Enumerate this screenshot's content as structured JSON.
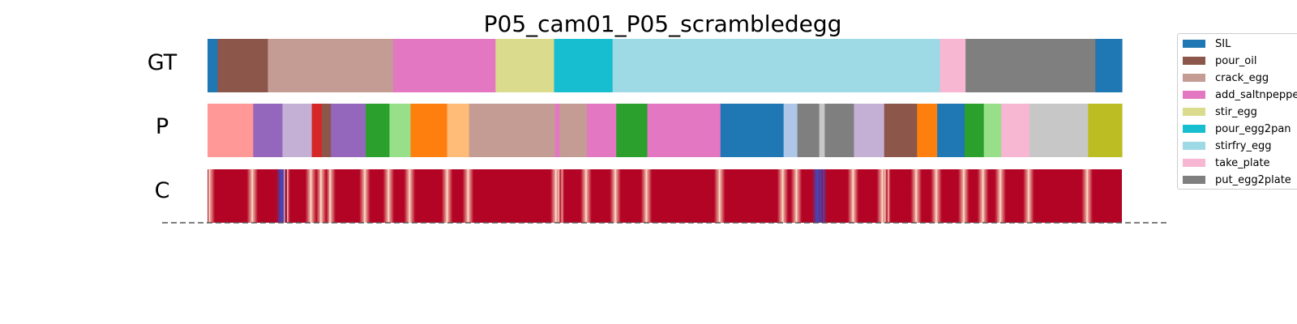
{
  "chart_data": {
    "type": "segmentation",
    "title": "P05_cam01_P05_scrambledegg",
    "rows": [
      {
        "label": "GT",
        "kind": "segments",
        "segments": [
          {
            "start": 0.0,
            "end": 0.011,
            "color": "#1f77b4"
          },
          {
            "start": 0.011,
            "end": 0.066,
            "color": "#8c564b"
          },
          {
            "start": 0.066,
            "end": 0.203,
            "color": "#c49c94"
          },
          {
            "start": 0.203,
            "end": 0.315,
            "color": "#e377c2"
          },
          {
            "start": 0.315,
            "end": 0.379,
            "color": "#dbdb8d"
          },
          {
            "start": 0.379,
            "end": 0.443,
            "color": "#17becf"
          },
          {
            "start": 0.443,
            "end": 0.801,
            "color": "#9edae5"
          },
          {
            "start": 0.801,
            "end": 0.829,
            "color": "#f7b6d2"
          },
          {
            "start": 0.829,
            "end": 0.971,
            "color": "#7f7f7f"
          },
          {
            "start": 0.971,
            "end": 1.0,
            "color": "#1f77b4"
          }
        ]
      },
      {
        "label": "P",
        "kind": "segments",
        "segments": [
          {
            "start": 0.0,
            "end": 0.05,
            "color": "#ff9896"
          },
          {
            "start": 0.05,
            "end": 0.082,
            "color": "#9467bd"
          },
          {
            "start": 0.082,
            "end": 0.114,
            "color": "#c5b0d5"
          },
          {
            "start": 0.114,
            "end": 0.125,
            "color": "#d62728"
          },
          {
            "start": 0.125,
            "end": 0.135,
            "color": "#8c564b"
          },
          {
            "start": 0.135,
            "end": 0.173,
            "color": "#9467bd"
          },
          {
            "start": 0.173,
            "end": 0.199,
            "color": "#2ca02c"
          },
          {
            "start": 0.199,
            "end": 0.222,
            "color": "#98df8a"
          },
          {
            "start": 0.222,
            "end": 0.262,
            "color": "#ff7f0e"
          },
          {
            "start": 0.262,
            "end": 0.286,
            "color": "#ffbb78"
          },
          {
            "start": 0.286,
            "end": 0.38,
            "color": "#c49c94"
          },
          {
            "start": 0.38,
            "end": 0.385,
            "color": "#e377c2"
          },
          {
            "start": 0.385,
            "end": 0.415,
            "color": "#c49c94"
          },
          {
            "start": 0.415,
            "end": 0.447,
            "color": "#e377c2"
          },
          {
            "start": 0.447,
            "end": 0.481,
            "color": "#2ca02c"
          },
          {
            "start": 0.481,
            "end": 0.561,
            "color": "#e377c2"
          },
          {
            "start": 0.561,
            "end": 0.63,
            "color": "#1f77b4"
          },
          {
            "start": 0.63,
            "end": 0.645,
            "color": "#aec7e8"
          },
          {
            "start": 0.645,
            "end": 0.669,
            "color": "#7f7f7f"
          },
          {
            "start": 0.669,
            "end": 0.675,
            "color": "#c7c7c7"
          },
          {
            "start": 0.675,
            "end": 0.707,
            "color": "#7f7f7f"
          },
          {
            "start": 0.707,
            "end": 0.74,
            "color": "#c5b0d5"
          },
          {
            "start": 0.74,
            "end": 0.776,
            "color": "#8c564b"
          },
          {
            "start": 0.776,
            "end": 0.798,
            "color": "#ff7f0e"
          },
          {
            "start": 0.798,
            "end": 0.828,
            "color": "#1f77b4"
          },
          {
            "start": 0.828,
            "end": 0.849,
            "color": "#2ca02c"
          },
          {
            "start": 0.849,
            "end": 0.868,
            "color": "#98df8a"
          },
          {
            "start": 0.868,
            "end": 0.899,
            "color": "#f7b6d2"
          },
          {
            "start": 0.899,
            "end": 0.963,
            "color": "#c7c7c7"
          },
          {
            "start": 0.963,
            "end": 1.0,
            "color": "#bcbd22"
          }
        ]
      },
      {
        "label": "C",
        "kind": "confidence",
        "base_color": "#b40426",
        "low_color": "#3b4cc0",
        "mid_color": "#f5c4ad",
        "dips": [
          {
            "pos": 0.002,
            "level": 0.2
          },
          {
            "pos": 0.049,
            "level": 0.6
          },
          {
            "pos": 0.081,
            "level": 0.15
          },
          {
            "pos": 0.084,
            "level": 0.5
          },
          {
            "pos": 0.113,
            "level": 0.6
          },
          {
            "pos": 0.124,
            "level": 0.6
          },
          {
            "pos": 0.134,
            "level": 0.5
          },
          {
            "pos": 0.172,
            "level": 0.6
          },
          {
            "pos": 0.198,
            "level": 0.6
          },
          {
            "pos": 0.221,
            "level": 0.25
          },
          {
            "pos": 0.262,
            "level": 0.6
          },
          {
            "pos": 0.285,
            "level": 0.6
          },
          {
            "pos": 0.381,
            "level": 0.3
          },
          {
            "pos": 0.384,
            "level": 0.5
          },
          {
            "pos": 0.414,
            "level": 0.5
          },
          {
            "pos": 0.446,
            "level": 0.6
          },
          {
            "pos": 0.48,
            "level": 0.6
          },
          {
            "pos": 0.56,
            "level": 0.6
          },
          {
            "pos": 0.629,
            "level": 0.3
          },
          {
            "pos": 0.644,
            "level": 0.6
          },
          {
            "pos": 0.667,
            "level": 0.15
          },
          {
            "pos": 0.671,
            "level": 0.1
          },
          {
            "pos": 0.706,
            "level": 0.5
          },
          {
            "pos": 0.738,
            "level": 0.5
          },
          {
            "pos": 0.741,
            "level": 0.2
          },
          {
            "pos": 0.775,
            "level": 0.6
          },
          {
            "pos": 0.797,
            "level": 0.6
          },
          {
            "pos": 0.827,
            "level": 0.6
          },
          {
            "pos": 0.848,
            "level": 0.6
          },
          {
            "pos": 0.867,
            "level": 0.4
          },
          {
            "pos": 0.898,
            "level": 0.6
          },
          {
            "pos": 0.962,
            "level": 0.5
          }
        ]
      }
    ],
    "legend": [
      {
        "label": "SIL",
        "color": "#1f77b4"
      },
      {
        "label": "pour_oil",
        "color": "#8c564b"
      },
      {
        "label": "crack_egg",
        "color": "#c49c94"
      },
      {
        "label": "add_saltnpepper",
        "color": "#e377c2"
      },
      {
        "label": "stir_egg",
        "color": "#dbdb8d"
      },
      {
        "label": "pour_egg2pan",
        "color": "#17becf"
      },
      {
        "label": "stirfry_egg",
        "color": "#9edae5"
      },
      {
        "label": "take_plate",
        "color": "#f7b6d2"
      },
      {
        "label": "put_egg2plate",
        "color": "#7f7f7f"
      }
    ],
    "legend_position": "upper-right-outside",
    "grid": false
  }
}
